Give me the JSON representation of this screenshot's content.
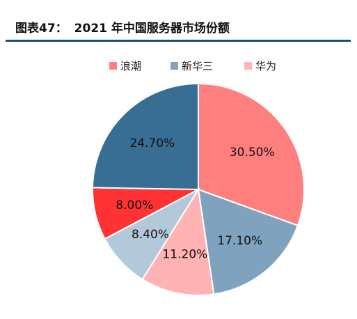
{
  "header": {
    "figure_label": "图表47：",
    "title": "2021 年中国服务器市场份额",
    "rule_color": "#1f4e79"
  },
  "chart_data": {
    "type": "pie",
    "title": "2021 年中国服务器市场份额",
    "legend_position": "top",
    "start_angle_deg": 0,
    "direction": "clockwise",
    "legend": [
      "浪潮",
      "新华三",
      "华为"
    ],
    "slices": [
      {
        "label": "30.50%",
        "value": 30.5,
        "color": "#ff7f7f"
      },
      {
        "label": "17.10%",
        "value": 17.1,
        "color": "#7fa3bf"
      },
      {
        "label": "11.20%",
        "value": 11.2,
        "color": "#ffb3b5"
      },
      {
        "label": "8.40%",
        "value": 8.4,
        "color": "#b3c8d9"
      },
      {
        "label": "8.00%",
        "value": 8.0,
        "color": "#ff3333"
      },
      {
        "label": "24.70%",
        "value": 24.7,
        "color": "#386e94"
      }
    ],
    "legend_colors": [
      "#ff7f7f",
      "#7fa3bf",
      "#ffb3b5"
    ]
  }
}
